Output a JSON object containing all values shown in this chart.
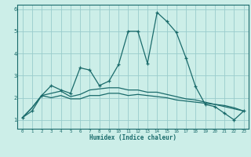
{
  "xlabel": "Humidex (Indice chaleur)",
  "bg_color": "#cceee8",
  "line_color": "#1a6b6b",
  "grid_color": "#99cccc",
  "x": [
    0,
    1,
    2,
    3,
    4,
    5,
    6,
    7,
    8,
    9,
    10,
    11,
    12,
    13,
    14,
    15,
    16,
    17,
    18,
    19,
    20,
    21,
    22,
    23
  ],
  "line1": [
    1.1,
    1.4,
    2.1,
    2.55,
    2.35,
    2.2,
    3.35,
    3.25,
    2.55,
    2.75,
    3.5,
    5.0,
    5.0,
    3.55,
    5.85,
    5.45,
    4.95,
    3.8,
    2.5,
    1.7,
    1.6,
    1.3,
    1.0,
    1.4
  ],
  "line2": [
    1.1,
    1.55,
    2.1,
    2.2,
    2.3,
    2.05,
    2.15,
    2.35,
    2.4,
    2.45,
    2.45,
    2.35,
    2.35,
    2.25,
    2.25,
    2.15,
    2.05,
    1.95,
    1.9,
    1.8,
    1.7,
    1.65,
    1.55,
    1.4
  ],
  "line3": [
    1.1,
    1.55,
    2.1,
    2.0,
    2.1,
    1.95,
    1.95,
    2.1,
    2.1,
    2.2,
    2.2,
    2.1,
    2.15,
    2.1,
    2.05,
    2.0,
    1.9,
    1.85,
    1.8,
    1.75,
    1.7,
    1.6,
    1.5,
    1.4
  ],
  "ylim": [
    0.6,
    6.2
  ],
  "xlim": [
    -0.5,
    23.5
  ],
  "yticks": [
    1,
    2,
    3,
    4,
    5,
    6
  ],
  "xticks": [
    0,
    1,
    2,
    3,
    4,
    5,
    6,
    7,
    8,
    9,
    10,
    11,
    12,
    13,
    14,
    15,
    16,
    17,
    18,
    19,
    20,
    21,
    22,
    23
  ]
}
